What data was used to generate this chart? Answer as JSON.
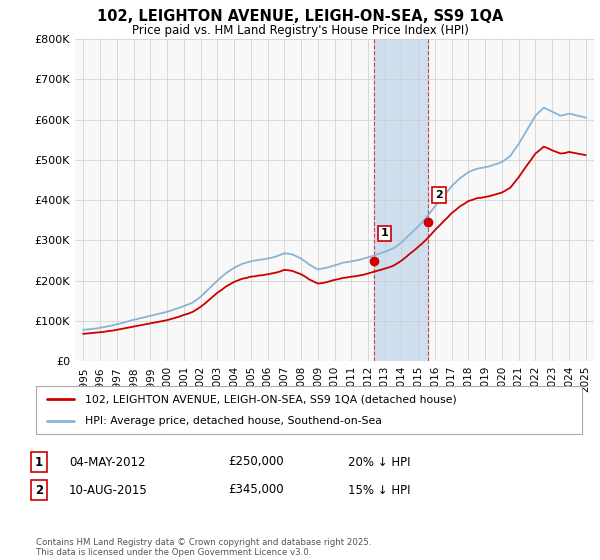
{
  "title_line1": "102, LEIGHTON AVENUE, LEIGH-ON-SEA, SS9 1QA",
  "title_line2": "Price paid vs. HM Land Registry's House Price Index (HPI)",
  "legend_line1": "102, LEIGHTON AVENUE, LEIGH-ON-SEA, SS9 1QA (detached house)",
  "legend_line2": "HPI: Average price, detached house, Southend-on-Sea",
  "annotation1_label": "1",
  "annotation1_date": "04-MAY-2012",
  "annotation1_price": "£250,000",
  "annotation1_hpi": "20% ↓ HPI",
  "annotation2_label": "2",
  "annotation2_date": "10-AUG-2015",
  "annotation2_price": "£345,000",
  "annotation2_hpi": "15% ↓ HPI",
  "footnote": "Contains HM Land Registry data © Crown copyright and database right 2025.\nThis data is licensed under the Open Government Licence v3.0.",
  "hpi_color": "#8ab4d4",
  "price_color": "#cc0000",
  "highlight_color": "#cfdff0",
  "ylim": [
    0,
    800000
  ],
  "yticks": [
    0,
    100000,
    200000,
    300000,
    400000,
    500000,
    600000,
    700000,
    800000
  ],
  "ytick_labels": [
    "£0",
    "£100K",
    "£200K",
    "£300K",
    "£400K",
    "£500K",
    "£600K",
    "£700K",
    "£800K"
  ],
  "sale1_year": 2012.34,
  "sale1_value": 250000,
  "sale2_year": 2015.61,
  "sale2_value": 345000,
  "hpi_years": [
    1995,
    1995.25,
    1995.5,
    1995.75,
    1996,
    1996.25,
    1996.5,
    1996.75,
    1997,
    1997.25,
    1997.5,
    1997.75,
    1998,
    1998.25,
    1998.5,
    1998.75,
    1999,
    1999.25,
    1999.5,
    1999.75,
    2000,
    2000.25,
    2000.5,
    2000.75,
    2001,
    2001.25,
    2001.5,
    2001.75,
    2002,
    2002.25,
    2002.5,
    2002.75,
    2003,
    2003.25,
    2003.5,
    2003.75,
    2004,
    2004.25,
    2004.5,
    2004.75,
    2005,
    2005.25,
    2005.5,
    2005.75,
    2006,
    2006.25,
    2006.5,
    2006.75,
    2007,
    2007.25,
    2007.5,
    2007.75,
    2008,
    2008.25,
    2008.5,
    2008.75,
    2009,
    2009.25,
    2009.5,
    2009.75,
    2010,
    2010.25,
    2010.5,
    2010.75,
    2011,
    2011.25,
    2011.5,
    2011.75,
    2012,
    2012.25,
    2012.5,
    2012.75,
    2013,
    2013.25,
    2013.5,
    2013.75,
    2014,
    2014.25,
    2014.5,
    2014.75,
    2015,
    2015.25,
    2015.5,
    2015.75,
    2016,
    2016.25,
    2016.5,
    2016.75,
    2017,
    2017.25,
    2017.5,
    2017.75,
    2018,
    2018.25,
    2018.5,
    2018.75,
    2019,
    2019.25,
    2019.5,
    2019.75,
    2020,
    2020.25,
    2020.5,
    2020.75,
    2021,
    2021.25,
    2021.5,
    2021.75,
    2022,
    2022.25,
    2022.5,
    2022.75,
    2023,
    2023.25,
    2023.5,
    2023.75,
    2024,
    2024.25,
    2024.5,
    2024.75,
    2025
  ],
  "hpi_values": [
    78000,
    79000,
    80000,
    81000,
    83000,
    85000,
    87000,
    89000,
    92000,
    94000,
    97000,
    100000,
    103000,
    105000,
    108000,
    110000,
    113000,
    115000,
    118000,
    120000,
    123000,
    126000,
    130000,
    133000,
    137000,
    141000,
    145000,
    152000,
    160000,
    170000,
    180000,
    190000,
    200000,
    209000,
    218000,
    225000,
    232000,
    237000,
    242000,
    245000,
    248000,
    250000,
    252000,
    253000,
    255000,
    257000,
    260000,
    264000,
    268000,
    267000,
    265000,
    260000,
    255000,
    248000,
    240000,
    234000,
    228000,
    230000,
    232000,
    235000,
    238000,
    241000,
    245000,
    246000,
    248000,
    250000,
    252000,
    255000,
    258000,
    261000,
    265000,
    268000,
    272000,
    276000,
    280000,
    287000,
    295000,
    305000,
    315000,
    325000,
    335000,
    346000,
    358000,
    371000,
    385000,
    397000,
    410000,
    422000,
    435000,
    445000,
    455000,
    462000,
    470000,
    474000,
    478000,
    480000,
    482000,
    484000,
    488000,
    491000,
    495000,
    502000,
    510000,
    525000,
    540000,
    557000,
    575000,
    592000,
    610000,
    620000,
    630000,
    625000,
    620000,
    615000,
    610000,
    612000,
    615000,
    613000,
    610000,
    608000,
    605000
  ],
  "price_years": [
    1995,
    1995.25,
    1995.5,
    1995.75,
    1996,
    1996.25,
    1996.5,
    1996.75,
    1997,
    1997.25,
    1997.5,
    1997.75,
    1998,
    1998.25,
    1998.5,
    1998.75,
    1999,
    1999.25,
    1999.5,
    1999.75,
    2000,
    2000.25,
    2000.5,
    2000.75,
    2001,
    2001.25,
    2001.5,
    2001.75,
    2002,
    2002.25,
    2002.5,
    2002.75,
    2003,
    2003.25,
    2003.5,
    2003.75,
    2004,
    2004.25,
    2004.5,
    2004.75,
    2005,
    2005.25,
    2005.5,
    2005.75,
    2006,
    2006.25,
    2006.5,
    2006.75,
    2007,
    2007.25,
    2007.5,
    2007.75,
    2008,
    2008.25,
    2008.5,
    2008.75,
    2009,
    2009.25,
    2009.5,
    2009.75,
    2010,
    2010.25,
    2010.5,
    2010.75,
    2011,
    2011.25,
    2011.5,
    2011.75,
    2012,
    2012.25,
    2012.5,
    2012.75,
    2013,
    2013.25,
    2013.5,
    2013.75,
    2014,
    2014.25,
    2014.5,
    2014.75,
    2015,
    2015.25,
    2015.5,
    2015.75,
    2016,
    2016.25,
    2016.5,
    2016.75,
    2017,
    2017.25,
    2017.5,
    2017.75,
    2018,
    2018.25,
    2018.5,
    2018.75,
    2019,
    2019.25,
    2019.5,
    2019.75,
    2020,
    2020.25,
    2020.5,
    2020.75,
    2021,
    2021.25,
    2021.5,
    2021.75,
    2022,
    2022.25,
    2022.5,
    2022.75,
    2023,
    2023.25,
    2023.5,
    2023.75,
    2024,
    2024.25,
    2024.5,
    2024.75,
    2025
  ],
  "price_values": [
    68000,
    69000,
    70000,
    71000,
    72000,
    73000,
    75000,
    76000,
    78000,
    80000,
    82000,
    84000,
    86000,
    88000,
    90000,
    92000,
    94000,
    96000,
    98000,
    100000,
    102000,
    105000,
    108000,
    111000,
    115000,
    118000,
    122000,
    128000,
    135000,
    143000,
    152000,
    161000,
    170000,
    177000,
    185000,
    191000,
    197000,
    201000,
    205000,
    207000,
    210000,
    211000,
    213000,
    214000,
    216000,
    218000,
    220000,
    223000,
    227000,
    226000,
    224000,
    220000,
    216000,
    210000,
    203000,
    198000,
    193000,
    194000,
    196000,
    199000,
    202000,
    204000,
    207000,
    208000,
    210000,
    211000,
    213000,
    215000,
    218000,
    221000,
    224000,
    227000,
    230000,
    233000,
    237000,
    243000,
    250000,
    258000,
    267000,
    275000,
    284000,
    293000,
    303000,
    314000,
    326000,
    336000,
    347000,
    357000,
    368000,
    376000,
    385000,
    391000,
    398000,
    401000,
    405000,
    406000,
    408000,
    410000,
    413000,
    416000,
    419000,
    425000,
    431000,
    444000,
    457000,
    472000,
    487000,
    501000,
    516000,
    524000,
    533000,
    529000,
    524000,
    520000,
    516000,
    517000,
    520000,
    518000,
    516000,
    514000,
    512000
  ],
  "xlim_left": 1994.5,
  "xlim_right": 2025.5,
  "xtick_years": [
    1995,
    1996,
    1997,
    1998,
    1999,
    2000,
    2001,
    2002,
    2003,
    2004,
    2005,
    2006,
    2007,
    2008,
    2009,
    2010,
    2011,
    2012,
    2013,
    2014,
    2015,
    2016,
    2017,
    2018,
    2019,
    2020,
    2021,
    2022,
    2023,
    2024,
    2025
  ],
  "bg_color": "#f8f8f8"
}
